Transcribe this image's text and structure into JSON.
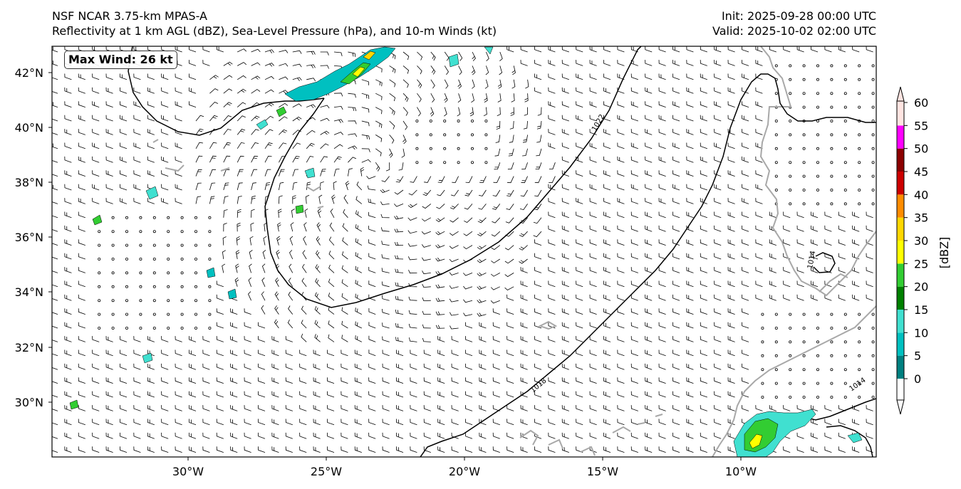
{
  "header": {
    "title_line1": "NSF NCAR 3.75-km MPAS-A",
    "title_line2": "Reflectivity at 1 km AGL (dBZ), Sea-Level Pressure (hPa), and 10-m Winds (kt)",
    "init": "Init: 2025-09-28 00:00 UTC",
    "valid": "Valid: 2025-10-02 02:00 UTC"
  },
  "annotation": {
    "max_wind": "Max Wind: 26 kt"
  },
  "map": {
    "lat_labels": [
      "42°N",
      "40°N",
      "38°N",
      "36°N",
      "34°N",
      "32°N",
      "30°N"
    ],
    "lon_labels": [
      "30°W",
      "25°W",
      "20°W",
      "15°W",
      "10°W"
    ],
    "isobar_labels": [
      "1022",
      "1018",
      "1014",
      "1014"
    ],
    "coast_color": "#a8a8a8",
    "isobar_color": "#000000"
  },
  "colorbar": {
    "unit_label": "[dBZ]",
    "ticks": [
      "0",
      "5",
      "10",
      "15",
      "20",
      "25",
      "30",
      "35",
      "40",
      "45",
      "50",
      "55",
      "60"
    ],
    "colors": [
      "#008080",
      "#00c0c0",
      "#40e0d0",
      "#008000",
      "#32cd32",
      "#ffff00",
      "#ffd700",
      "#ff8c00",
      "#cc0000",
      "#8b0000",
      "#ff00ff",
      "#ffe4e1"
    ]
  }
}
